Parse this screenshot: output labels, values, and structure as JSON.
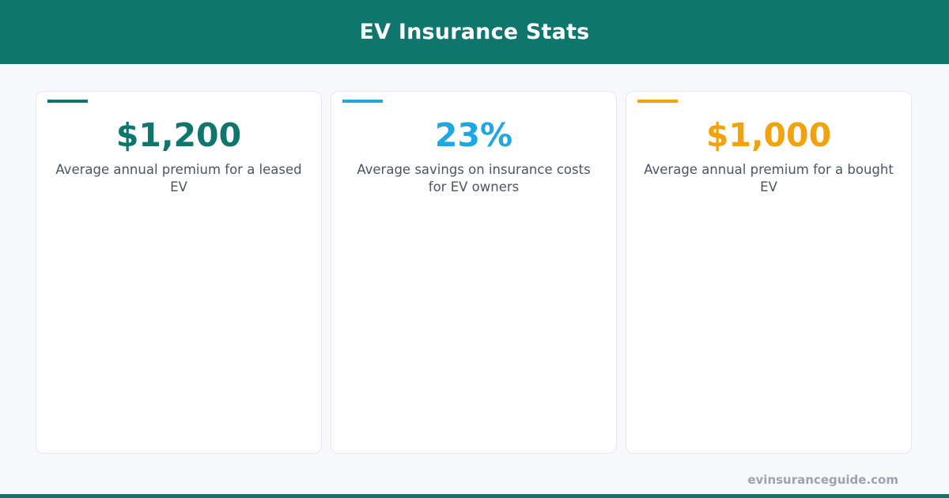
{
  "header": {
    "title": "EV Insurance Stats"
  },
  "colors": {
    "header_bg": "#0f766e",
    "teal": "#0f766e",
    "blue": "#1ea7e1",
    "orange": "#f2a20c"
  },
  "cards": [
    {
      "value": "$1,200",
      "description": "Average annual premium for a leased EV",
      "accent": "#0f766e"
    },
    {
      "value": "23%",
      "description": "Average savings on insurance costs for EV owners",
      "accent": "#1ea7e1"
    },
    {
      "value": "$1,000",
      "description": "Average annual premium for a bought EV",
      "accent": "#f2a20c"
    }
  ],
  "footer": {
    "site": "evinsuranceguide.com"
  }
}
